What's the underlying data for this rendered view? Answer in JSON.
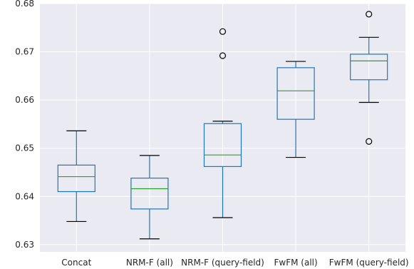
{
  "chart_data": {
    "type": "box",
    "title": "",
    "xlabel": "",
    "ylabel": "",
    "ylim": [
      0.6285,
      0.68
    ],
    "yticks": [
      0.63,
      0.64,
      0.65,
      0.66,
      0.67,
      0.68
    ],
    "ytick_labels": [
      "0.63",
      "0.64",
      "0.65",
      "0.66",
      "0.67",
      "0.68"
    ],
    "grid": true,
    "legend": "none",
    "categories": [
      "Concat",
      "NRM-F (all)",
      "NRM-F (query-field)",
      "FwFM (all)",
      "FwFM (query-field)"
    ],
    "boxes": [
      {
        "whisker_low": 0.6348,
        "q1": 0.641,
        "median": 0.6441,
        "q3": 0.6465,
        "whisker_high": 0.6536,
        "outliers": []
      },
      {
        "whisker_low": 0.6312,
        "q1": 0.6374,
        "median": 0.6416,
        "q3": 0.6438,
        "whisker_high": 0.6485,
        "outliers": []
      },
      {
        "whisker_low": 0.6356,
        "q1": 0.6462,
        "median": 0.6486,
        "q3": 0.6551,
        "whisker_high": 0.6556,
        "outliers": [
          0.6692,
          0.6742
        ]
      },
      {
        "whisker_low": 0.6481,
        "q1": 0.656,
        "median": 0.6619,
        "q3": 0.6667,
        "whisker_high": 0.668,
        "outliers": []
      },
      {
        "whisker_low": 0.6595,
        "q1": 0.6642,
        "median": 0.6681,
        "q3": 0.6695,
        "whisker_high": 0.673,
        "outliers": [
          0.6514,
          0.6778
        ]
      }
    ],
    "colors": {
      "plot_background": "#eaeaf2",
      "grid": "#ffffff",
      "box": "#1f77b4",
      "median": "#2ca02c",
      "whisker_cap": "#000000",
      "outlier": "#000000"
    }
  }
}
